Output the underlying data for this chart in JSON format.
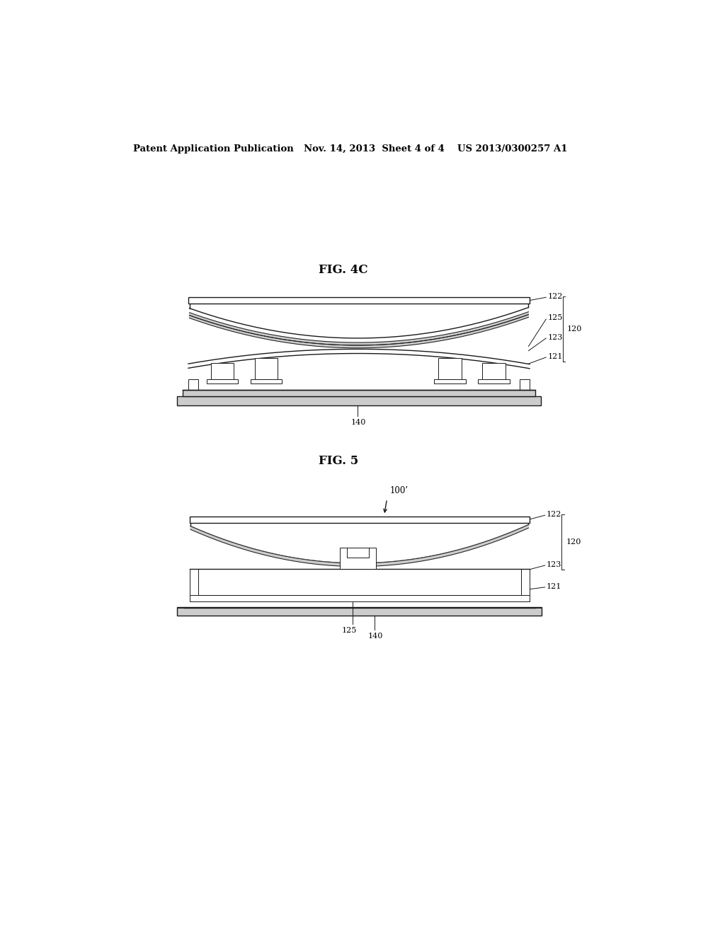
{
  "background_color": "#ffffff",
  "header_left": "Patent Application Publication",
  "header_mid": "Nov. 14, 2013  Sheet 4 of 4",
  "header_right": "US 2013/0300257 A1",
  "fig4c_label": "FIG. 4C",
  "fig5_label": "FIG. 5",
  "label_120": "120",
  "label_121": "121",
  "label_122": "122",
  "label_123": "123",
  "label_125": "125",
  "label_140": "140",
  "label_100p": "100’",
  "line_color": "#1a1a1a",
  "fill_white": "#ffffff",
  "fill_gray": "#cccccc"
}
